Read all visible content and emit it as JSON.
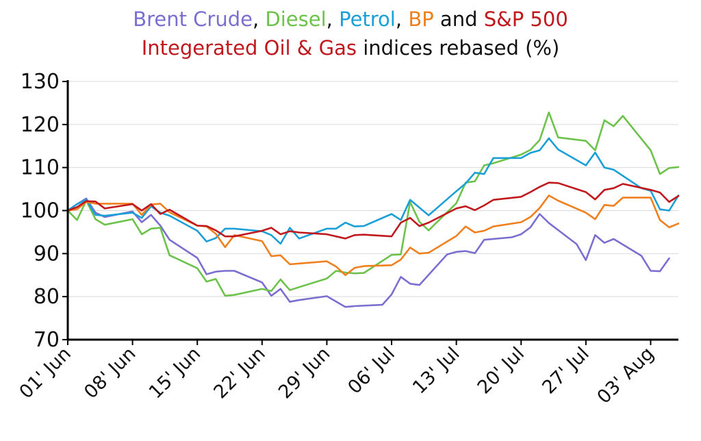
{
  "chart_data": {
    "type": "line",
    "title": {
      "line1": [
        {
          "text": "Brent Crude",
          "color": "#7a6fd0"
        },
        {
          "text": ", ",
          "color": "#111111"
        },
        {
          "text": "Diesel",
          "color": "#6cc24a"
        },
        {
          "text": ", ",
          "color": "#111111"
        },
        {
          "text": "Petrol",
          "color": "#1a9fd6"
        },
        {
          "text": ", ",
          "color": "#111111"
        },
        {
          "text": "BP",
          "color": "#f07f1e"
        },
        {
          "text": " and ",
          "color": "#111111"
        },
        {
          "text": "S&P 500",
          "color": "#c0181c"
        }
      ],
      "line2": [
        {
          "text": "Integerated Oil & Gas",
          "color": "#c0181c"
        },
        {
          "text": " indices rebased (%)",
          "color": "#111111"
        }
      ]
    },
    "xlabel": "",
    "ylabel": "",
    "ylim": [
      70,
      130
    ],
    "yticks": [
      "70",
      "80",
      "90",
      "100",
      "110",
      "120",
      "130"
    ],
    "xlim": [
      "01' Jun",
      "10' Aug"
    ],
    "xticks": [
      {
        "label": "01' Jun",
        "day": 0
      },
      {
        "label": "08' Jun",
        "day": 7
      },
      {
        "label": "15' Jun",
        "day": 14
      },
      {
        "label": "22' Jun",
        "day": 21
      },
      {
        "label": "29' Jun",
        "day": 28
      },
      {
        "label": "06' Jul",
        "day": 35
      },
      {
        "label": "13' Jul",
        "day": 42
      },
      {
        "label": "20' Jul",
        "day": 49
      },
      {
        "label": "27' Jul",
        "day": 56
      },
      {
        "label": "03' Aug",
        "day": 63
      }
    ],
    "grid": "horizontal",
    "legend": "title",
    "series": [
      {
        "name": "Brent Crude",
        "color": "#7a6fd0",
        "points": [
          [
            0,
            100
          ],
          [
            1,
            101.5
          ],
          [
            2,
            102.8
          ],
          [
            3,
            99.5
          ],
          [
            4,
            98.5
          ],
          [
            7,
            99.8
          ],
          [
            8,
            97.3
          ],
          [
            9,
            99
          ],
          [
            10,
            96.5
          ],
          [
            11,
            93.2
          ],
          [
            14,
            89
          ],
          [
            15,
            85.2
          ],
          [
            16,
            85.8
          ],
          [
            17,
            86
          ],
          [
            18,
            86
          ],
          [
            21,
            83.3
          ],
          [
            22,
            80.2
          ],
          [
            23,
            81.8
          ],
          [
            24,
            78.8
          ],
          [
            25,
            79.2
          ],
          [
            28,
            80.1
          ],
          [
            30,
            77.6
          ],
          [
            31,
            77.8
          ],
          [
            34,
            78.1
          ],
          [
            35,
            80.5
          ],
          [
            36,
            84.6
          ],
          [
            37,
            83
          ],
          [
            38,
            82.7
          ],
          [
            41,
            89.8
          ],
          [
            42,
            90.4
          ],
          [
            43,
            90.6
          ],
          [
            44,
            90.1
          ],
          [
            45,
            93.2
          ],
          [
            48,
            93.8
          ],
          [
            49,
            94.5
          ],
          [
            50,
            96.1
          ],
          [
            51,
            99.2
          ],
          [
            52,
            97.1
          ],
          [
            55,
            92.2
          ],
          [
            56,
            88.5
          ],
          [
            57,
            94.3
          ],
          [
            58,
            92.5
          ],
          [
            59,
            93.4
          ],
          [
            62,
            89.5
          ],
          [
            63,
            86
          ],
          [
            64,
            85.9
          ],
          [
            65,
            88.9
          ]
        ]
      },
      {
        "name": "Diesel",
        "color": "#6cc24a",
        "points": [
          [
            0,
            100
          ],
          [
            1,
            97.8
          ],
          [
            2,
            102.3
          ],
          [
            3,
            98
          ],
          [
            4,
            96.7
          ],
          [
            7,
            98
          ],
          [
            8,
            94.5
          ],
          [
            9,
            95.8
          ],
          [
            10,
            96
          ],
          [
            11,
            89.6
          ],
          [
            14,
            86.6
          ],
          [
            15,
            83.5
          ],
          [
            16,
            84.1
          ],
          [
            17,
            80.2
          ],
          [
            18,
            80.4
          ],
          [
            21,
            81.8
          ],
          [
            22,
            81.3
          ],
          [
            23,
            84
          ],
          [
            24,
            81.5
          ],
          [
            25,
            82.2
          ],
          [
            28,
            84.2
          ],
          [
            29,
            86
          ],
          [
            30,
            85.6
          ],
          [
            31,
            85.4
          ],
          [
            32,
            85.5
          ],
          [
            35,
            89.7
          ],
          [
            36,
            89.8
          ],
          [
            37,
            102
          ],
          [
            38,
            97.4
          ],
          [
            39,
            95.4
          ],
          [
            42,
            101.7
          ],
          [
            43,
            106.5
          ],
          [
            44,
            106.8
          ],
          [
            45,
            110.5
          ],
          [
            46,
            111
          ],
          [
            49,
            113
          ],
          [
            50,
            114.1
          ],
          [
            51,
            116.4
          ],
          [
            52,
            122.8
          ],
          [
            53,
            117
          ],
          [
            56,
            116.2
          ],
          [
            57,
            114
          ],
          [
            58,
            121
          ],
          [
            59,
            119.6
          ],
          [
            60,
            122
          ],
          [
            63,
            114
          ],
          [
            64,
            108.5
          ],
          [
            65,
            109.9
          ],
          [
            66,
            110.1
          ]
        ]
      },
      {
        "name": "Petrol",
        "color": "#1a9fd6",
        "points": [
          [
            0,
            100
          ],
          [
            1,
            101.5
          ],
          [
            2,
            102.5
          ],
          [
            3,
            99
          ],
          [
            4,
            98.8
          ],
          [
            7,
            99.5
          ],
          [
            8,
            98.3
          ],
          [
            9,
            101
          ],
          [
            10,
            99.5
          ],
          [
            11,
            98.8
          ],
          [
            14,
            95.3
          ],
          [
            15,
            92.8
          ],
          [
            16,
            93.6
          ],
          [
            17,
            95.8
          ],
          [
            18,
            95.8
          ],
          [
            21,
            95.2
          ],
          [
            22,
            94.3
          ],
          [
            23,
            92.3
          ],
          [
            24,
            96
          ],
          [
            25,
            93.5
          ],
          [
            28,
            95.8
          ],
          [
            29,
            95.8
          ],
          [
            30,
            97.2
          ],
          [
            31,
            96.3
          ],
          [
            32,
            96.4
          ],
          [
            35,
            99.2
          ],
          [
            36,
            97.8
          ],
          [
            37,
            102.5
          ],
          [
            38,
            100.7
          ],
          [
            39,
            98.9
          ],
          [
            42,
            104.5
          ],
          [
            43,
            106.3
          ],
          [
            44,
            108.8
          ],
          [
            45,
            108.5
          ],
          [
            46,
            112.2
          ],
          [
            49,
            112.2
          ],
          [
            50,
            113.4
          ],
          [
            51,
            114
          ],
          [
            52,
            116.8
          ],
          [
            53,
            114.2
          ],
          [
            56,
            110.5
          ],
          [
            57,
            113.5
          ],
          [
            58,
            110
          ],
          [
            59,
            109.5
          ],
          [
            62,
            105.2
          ],
          [
            63,
            104.6
          ],
          [
            64,
            100.3
          ],
          [
            65,
            100
          ],
          [
            66,
            103.5
          ]
        ]
      },
      {
        "name": "BP",
        "color": "#f07f1e",
        "points": [
          [
            0,
            100
          ],
          [
            1,
            100.3
          ],
          [
            2,
            102
          ],
          [
            3,
            101.6
          ],
          [
            4,
            101.6
          ],
          [
            7,
            101.6
          ],
          [
            8,
            99
          ],
          [
            9,
            101.4
          ],
          [
            10,
            101.6
          ],
          [
            11,
            99.6
          ],
          [
            14,
            96.5
          ],
          [
            15,
            96.3
          ],
          [
            16,
            94.6
          ],
          [
            17,
            91.5
          ],
          [
            18,
            94.3
          ],
          [
            21,
            92.9
          ],
          [
            22,
            89.4
          ],
          [
            23,
            89.6
          ],
          [
            24,
            87.5
          ],
          [
            25,
            87.7
          ],
          [
            28,
            88.2
          ],
          [
            29,
            87
          ],
          [
            30,
            85
          ],
          [
            31,
            86.7
          ],
          [
            32,
            87.1
          ],
          [
            35,
            87.3
          ],
          [
            36,
            88.6
          ],
          [
            37,
            91.4
          ],
          [
            38,
            90
          ],
          [
            39,
            90.2
          ],
          [
            42,
            94.1
          ],
          [
            43,
            96.3
          ],
          [
            44,
            94.9
          ],
          [
            45,
            95.3
          ],
          [
            46,
            96.3
          ],
          [
            49,
            97.3
          ],
          [
            50,
            98.5
          ],
          [
            51,
            100.6
          ],
          [
            52,
            103.5
          ],
          [
            53,
            102.3
          ],
          [
            56,
            99.5
          ],
          [
            57,
            98
          ],
          [
            58,
            101.3
          ],
          [
            59,
            101.1
          ],
          [
            60,
            103
          ],
          [
            63,
            103
          ],
          [
            64,
            97.8
          ],
          [
            65,
            96.1
          ],
          [
            66,
            97
          ]
        ]
      },
      {
        "name": "S&P 500 Integerated Oil & Gas",
        "color": "#c0181c",
        "points": [
          [
            0,
            100
          ],
          [
            1,
            100.8
          ],
          [
            2,
            102.2
          ],
          [
            3,
            102.1
          ],
          [
            4,
            100.5
          ],
          [
            7,
            101.5
          ],
          [
            8,
            100
          ],
          [
            9,
            101.5
          ],
          [
            10,
            99.2
          ],
          [
            11,
            100.2
          ],
          [
            14,
            96.5
          ],
          [
            15,
            96.4
          ],
          [
            16,
            95.4
          ],
          [
            17,
            94
          ],
          [
            18,
            94
          ],
          [
            21,
            95.3
          ],
          [
            22,
            96
          ],
          [
            23,
            94.5
          ],
          [
            24,
            95.2
          ],
          [
            25,
            94.9
          ],
          [
            28,
            94.5
          ],
          [
            30,
            93.5
          ],
          [
            31,
            94.3
          ],
          [
            32,
            94.4
          ],
          [
            35,
            94
          ],
          [
            36,
            97.2
          ],
          [
            37,
            98.3
          ],
          [
            38,
            96.4
          ],
          [
            39,
            97.2
          ],
          [
            42,
            100.5
          ],
          [
            43,
            101
          ],
          [
            44,
            100.1
          ],
          [
            45,
            101.2
          ],
          [
            46,
            102.5
          ],
          [
            49,
            103.2
          ],
          [
            50,
            104.3
          ],
          [
            51,
            105.5
          ],
          [
            52,
            106.5
          ],
          [
            53,
            106.4
          ],
          [
            56,
            104.3
          ],
          [
            57,
            102.6
          ],
          [
            58,
            104.8
          ],
          [
            59,
            105.2
          ],
          [
            60,
            106.2
          ],
          [
            63,
            104.8
          ],
          [
            64,
            104.2
          ],
          [
            65,
            102
          ],
          [
            66,
            103.4
          ]
        ]
      }
    ]
  }
}
